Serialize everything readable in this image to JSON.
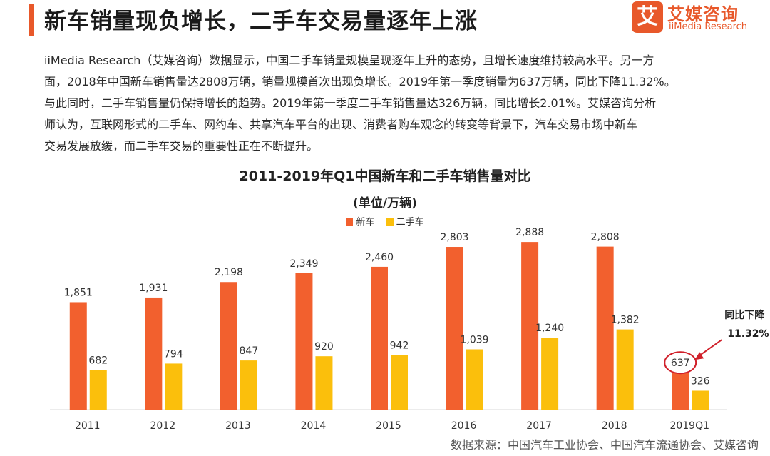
{
  "header": {
    "title": "新车销量现负增长，二手车交易量逐年上涨",
    "logo_mark": "艾",
    "logo_cn": "艾媒咨询",
    "logo_en": "iiMedia Research"
  },
  "paragraph": [
    "iiMedia Research（艾媒咨询）数据显示，中国二手车销量规模呈现逐年上升的态势，且增长速度维持较高水平。另一方",
    "面，2018年中国新车销售量达2808万辆，销量规模首次出现负增长。2019年第一季度销量为637万辆，同比下降11.32%。",
    "与此同时，二手车销售量仍保持增长的趋势。2019年第一季度二手车销售量达326万辆，同比增长2.01%。艾媒咨询分析",
    "师认为，互联网形式的二手车、网约车、共享汽车平台的出现、消费者购车观念的转变等背景下，汽车交易市场中新车",
    "交易发展放缓，而二手车交易的重要性正在不断提升。"
  ],
  "colors": {
    "accent": "#e8582a",
    "new_car": "#f2602e",
    "used_car": "#fbbf0c",
    "annotation": "#d0202a"
  },
  "chart_data": {
    "type": "bar",
    "title": "2011-2019年Q1中国新车和二手车销售量对比",
    "subtitle": "(单位/万辆)",
    "categories": [
      "2011",
      "2012",
      "2013",
      "2014",
      "2015",
      "2016",
      "2017",
      "2018",
      "2019Q1"
    ],
    "series": [
      {
        "name": "新车",
        "values": [
          1851,
          1931,
          2198,
          2349,
          2460,
          2803,
          2888,
          2808,
          637
        ],
        "labels": [
          "1,851",
          "1,931",
          "2,198",
          "2,349",
          "2,460",
          "2,803",
          "2,888",
          "2,808",
          "637"
        ]
      },
      {
        "name": "二手车",
        "values": [
          682,
          794,
          847,
          920,
          942,
          1039,
          1240,
          1382,
          326
        ],
        "labels": [
          "682",
          "794",
          "847",
          "920",
          "942",
          "1,039",
          "1,240",
          "1,382",
          "326"
        ]
      }
    ],
    "ylim": [
      0,
      3000
    ],
    "grid": false,
    "legend": "top-center",
    "annotation": {
      "line1": "同比下降",
      "line2": "11.32%"
    }
  },
  "footer": {
    "source": "数据来源：中国汽车工业协会、中国汽车流通协会、艾媒咨询"
  }
}
